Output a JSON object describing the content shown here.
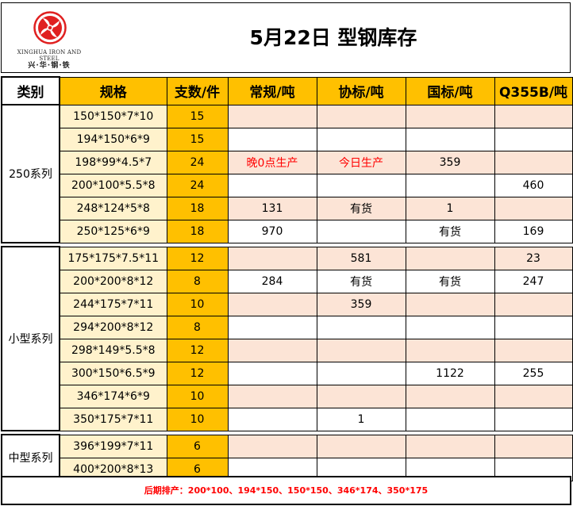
{
  "logo": {
    "english": "XINGHUA IRON AND STEEL",
    "chinese": "兴·华·钢·铁",
    "color": "#E02020"
  },
  "title": "5月22日  型钢库存",
  "headers": {
    "category": "类别",
    "spec": "规格",
    "count": "支数/件",
    "regular": "常规/吨",
    "association": "协标/吨",
    "national": "国标/吨",
    "q355b": "Q355B/吨"
  },
  "groups": [
    {
      "label": "250系列",
      "rows": [
        {
          "spec": "150*150*7*10",
          "count": "15",
          "regular": "",
          "association": "",
          "national": "",
          "q355b": ""
        },
        {
          "spec": "194*150*6*9",
          "count": "15",
          "regular": "",
          "association": "",
          "national": "",
          "q355b": ""
        },
        {
          "spec": "198*99*4.5*7",
          "count": "24",
          "regular": "晚0点生产",
          "association": "今日生产",
          "national": "359",
          "q355b": ""
        },
        {
          "spec": "200*100*5.5*8",
          "count": "24",
          "regular": "",
          "association": "",
          "national": "",
          "q355b": "460"
        },
        {
          "spec": "248*124*5*8",
          "count": "18",
          "regular": "131",
          "association": "有货",
          "national": "1",
          "q355b": ""
        },
        {
          "spec": "250*125*6*9",
          "count": "18",
          "regular": "970",
          "association": "",
          "national": "有货",
          "q355b": "169"
        }
      ]
    },
    {
      "label": "小型系列",
      "rows": [
        {
          "spec": "175*175*7.5*11",
          "count": "12",
          "regular": "",
          "association": "581",
          "national": "",
          "q355b": "23"
        },
        {
          "spec": "200*200*8*12",
          "count": "8",
          "regular": "284",
          "association": "有货",
          "national": "有货",
          "q355b": "247"
        },
        {
          "spec": "244*175*7*11",
          "count": "10",
          "regular": "",
          "association": "359",
          "national": "",
          "q355b": ""
        },
        {
          "spec": "294*200*8*12",
          "count": "8",
          "regular": "",
          "association": "",
          "national": "",
          "q355b": ""
        },
        {
          "spec": "298*149*5.5*8",
          "count": "12",
          "regular": "",
          "association": "",
          "national": "",
          "q355b": ""
        },
        {
          "spec": "300*150*6.5*9",
          "count": "12",
          "regular": "",
          "association": "",
          "national": "1122",
          "q355b": "255"
        },
        {
          "spec": "346*174*6*9",
          "count": "10",
          "regular": "",
          "association": "",
          "national": "",
          "q355b": ""
        },
        {
          "spec": "350*175*7*11",
          "count": "10",
          "regular": "",
          "association": "1",
          "national": "",
          "q355b": ""
        }
      ]
    },
    {
      "label": "中型系列",
      "rows": [
        {
          "spec": "396*199*7*11",
          "count": "6",
          "regular": "",
          "association": "",
          "national": "",
          "q355b": ""
        },
        {
          "spec": "400*200*8*13",
          "count": "6",
          "regular": "",
          "association": "",
          "national": "",
          "q355b": ""
        }
      ]
    }
  ],
  "footer": "后期排产：200*100、194*150、150*150、346*174、350*175",
  "colors": {
    "header_gold": "#FFC000",
    "spec_cell": "#FFF2CC",
    "row_tint": "#FCE4D6",
    "highlight_text": "#FF0000"
  }
}
